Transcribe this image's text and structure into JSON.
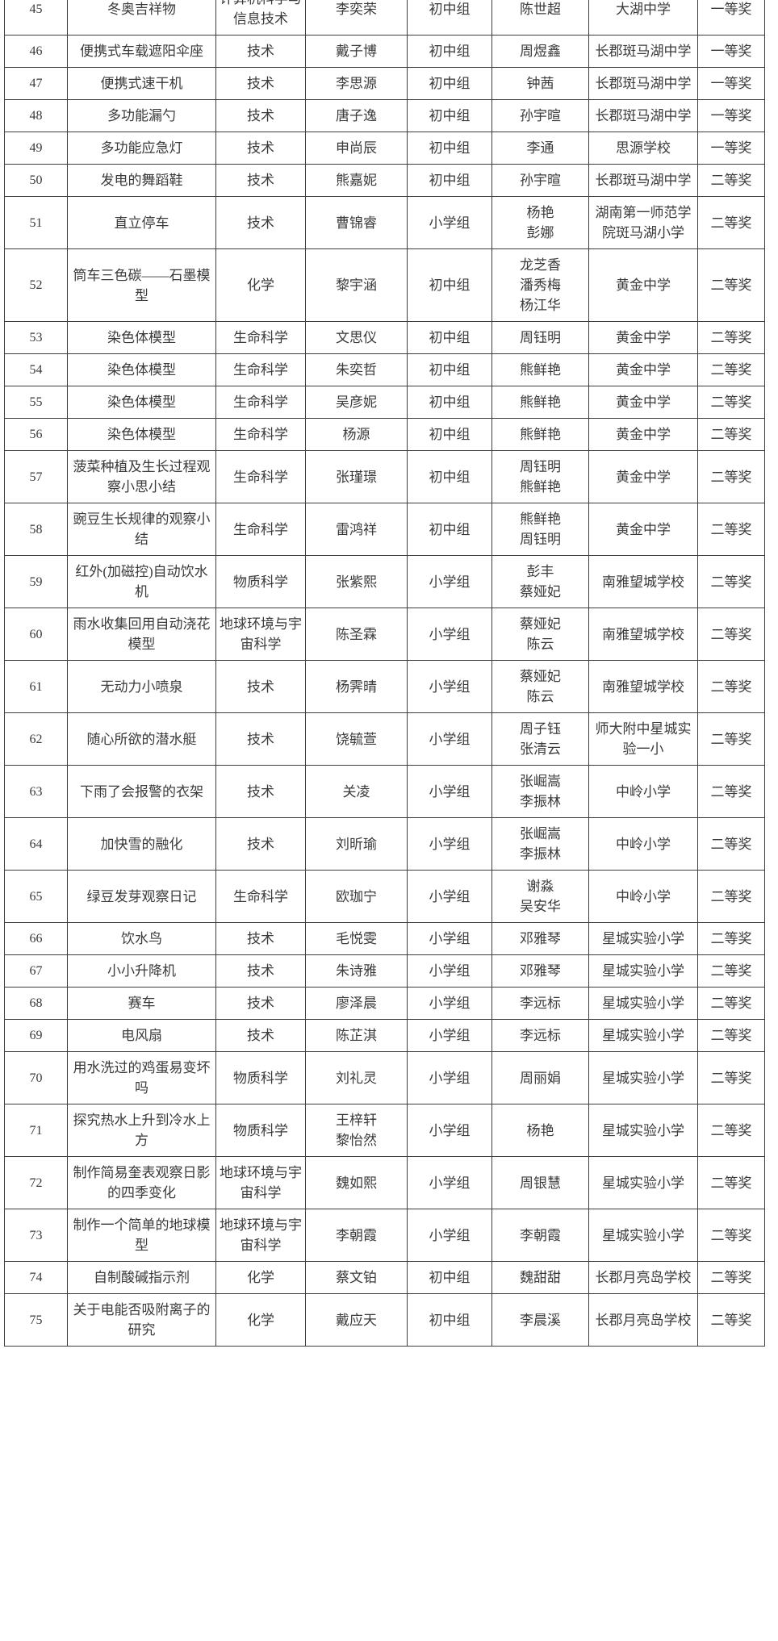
{
  "document": {
    "type": "scanned-award-list-table",
    "text_color": "#3a3a3a",
    "border_color": "#3d3d3d",
    "background_color": "#ffffff"
  },
  "table": {
    "rows": [
      {
        "no": "45",
        "project": "冬奥吉祥物",
        "category": "计算机科学与信息技术",
        "student": "李奕荣",
        "group": "初中组",
        "teacher": "陈世超",
        "school": "大湖中学",
        "award": "一等奖"
      },
      {
        "no": "46",
        "project": "便携式车载遮阳伞座",
        "category": "技术",
        "student": "戴子博",
        "group": "初中组",
        "teacher": "周煜鑫",
        "school": "长郡斑马湖中学",
        "award": "一等奖"
      },
      {
        "no": "47",
        "project": "便携式速干机",
        "category": "技术",
        "student": "李思源",
        "group": "初中组",
        "teacher": "钟茜",
        "school": "长郡斑马湖中学",
        "award": "一等奖"
      },
      {
        "no": "48",
        "project": "多功能漏勺",
        "category": "技术",
        "student": "唐子逸",
        "group": "初中组",
        "teacher": "孙宇暄",
        "school": "长郡斑马湖中学",
        "award": "一等奖"
      },
      {
        "no": "49",
        "project": "多功能应急灯",
        "category": "技术",
        "student": "申尚辰",
        "group": "初中组",
        "teacher": "李通",
        "school": "思源学校",
        "award": "一等奖"
      },
      {
        "no": "50",
        "project": "发电的舞蹈鞋",
        "category": "技术",
        "student": "熊嘉妮",
        "group": "初中组",
        "teacher": "孙宇暄",
        "school": "长郡斑马湖中学",
        "award": "二等奖"
      },
      {
        "no": "51",
        "project": "直立停车",
        "category": "技术",
        "student": "曹锦睿",
        "group": "小学组",
        "teacher": "杨艳\n彭娜",
        "school": "湖南第一师范学院斑马湖小学",
        "award": "二等奖"
      },
      {
        "no": "52",
        "project": "筒车三色碳——石墨模型",
        "category": "化学",
        "student": "黎宇涵",
        "group": "初中组",
        "teacher": "龙芝香\n潘秀梅\n杨江华",
        "school": "黄金中学",
        "award": "二等奖"
      },
      {
        "no": "53",
        "project": "染色体模型",
        "category": "生命科学",
        "student": "文思仪",
        "group": "初中组",
        "teacher": "周钰明",
        "school": "黄金中学",
        "award": "二等奖"
      },
      {
        "no": "54",
        "project": "染色体模型",
        "category": "生命科学",
        "student": "朱奕哲",
        "group": "初中组",
        "teacher": "熊鲜艳",
        "school": "黄金中学",
        "award": "二等奖"
      },
      {
        "no": "55",
        "project": "染色体模型",
        "category": "生命科学",
        "student": "吴彦妮",
        "group": "初中组",
        "teacher": "熊鲜艳",
        "school": "黄金中学",
        "award": "二等奖"
      },
      {
        "no": "56",
        "project": "染色体模型",
        "category": "生命科学",
        "student": "杨源",
        "group": "初中组",
        "teacher": "熊鲜艳",
        "school": "黄金中学",
        "award": "二等奖"
      },
      {
        "no": "57",
        "project": "菠菜种植及生长过程观察小思小结",
        "category": "生命科学",
        "student": "张瑾璟",
        "group": "初中组",
        "teacher": "周钰明\n熊鲜艳",
        "school": "黄金中学",
        "award": "二等奖"
      },
      {
        "no": "58",
        "project": "豌豆生长规律的观察小结",
        "category": "生命科学",
        "student": "雷鸿祥",
        "group": "初中组",
        "teacher": "熊鲜艳\n周钰明",
        "school": "黄金中学",
        "award": "二等奖"
      },
      {
        "no": "59",
        "project": "红外(加磁控)自动饮水机",
        "category": "物质科学",
        "student": "张紫熙",
        "group": "小学组",
        "teacher": "彭丰\n蔡娅妃",
        "school": "南雅望城学校",
        "award": "二等奖"
      },
      {
        "no": "60",
        "project": "雨水收集回用自动浇花模型",
        "category": "地球环境与宇宙科学",
        "student": "陈圣霖",
        "group": "小学组",
        "teacher": "蔡娅妃\n陈云",
        "school": "南雅望城学校",
        "award": "二等奖"
      },
      {
        "no": "61",
        "project": "无动力小喷泉",
        "category": "技术",
        "student": "杨霁晴",
        "group": "小学组",
        "teacher": "蔡娅妃\n陈云",
        "school": "南雅望城学校",
        "award": "二等奖"
      },
      {
        "no": "62",
        "project": "随心所欲的潜水艇",
        "category": "技术",
        "student": "饶毓萱",
        "group": "小学组",
        "teacher": "周子钰\n张清云",
        "school": "师大附中星城实验一小",
        "award": "二等奖"
      },
      {
        "no": "63",
        "project": "下雨了会报警的衣架",
        "category": "技术",
        "student": "关凌",
        "group": "小学组",
        "teacher": "张崛嵩\n李振林",
        "school": "中岭小学",
        "award": "二等奖"
      },
      {
        "no": "64",
        "project": "加快雪的融化",
        "category": "技术",
        "student": "刘昕瑜",
        "group": "小学组",
        "teacher": "张崛嵩\n李振林",
        "school": "中岭小学",
        "award": "二等奖"
      },
      {
        "no": "65",
        "project": "绿豆发芽观察日记",
        "category": "生命科学",
        "student": "欧珈宁",
        "group": "小学组",
        "teacher": "谢淼\n吴安华",
        "school": "中岭小学",
        "award": "二等奖"
      },
      {
        "no": "66",
        "project": "饮水鸟",
        "category": "技术",
        "student": "毛悦雯",
        "group": "小学组",
        "teacher": "邓雅琴",
        "school": "星城实验小学",
        "award": "二等奖"
      },
      {
        "no": "67",
        "project": "小小升降机",
        "category": "技术",
        "student": "朱诗雅",
        "group": "小学组",
        "teacher": "邓雅琴",
        "school": "星城实验小学",
        "award": "二等奖"
      },
      {
        "no": "68",
        "project": "赛车",
        "category": "技术",
        "student": "廖泽晨",
        "group": "小学组",
        "teacher": "李远标",
        "school": "星城实验小学",
        "award": "二等奖"
      },
      {
        "no": "69",
        "project": "电风扇",
        "category": "技术",
        "student": "陈芷淇",
        "group": "小学组",
        "teacher": "李远标",
        "school": "星城实验小学",
        "award": "二等奖"
      },
      {
        "no": "70",
        "project": "用水洗过的鸡蛋易变坏吗",
        "category": "物质科学",
        "student": "刘礼灵",
        "group": "小学组",
        "teacher": "周丽娟",
        "school": "星城实验小学",
        "award": "二等奖"
      },
      {
        "no": "71",
        "project": "探究热水上升到冷水上方",
        "category": "物质科学",
        "student": "王梓轩\n黎怡然",
        "group": "小学组",
        "teacher": "杨艳",
        "school": "星城实验小学",
        "award": "二等奖"
      },
      {
        "no": "72",
        "project": "制作简易奎表观察日影的四季变化",
        "category": "地球环境与宇宙科学",
        "student": "魏如熙",
        "group": "小学组",
        "teacher": "周银慧",
        "school": "星城实验小学",
        "award": "二等奖"
      },
      {
        "no": "73",
        "project": "制作一个简单的地球模型",
        "category": "地球环境与宇宙科学",
        "student": "李朝霞",
        "group": "小学组",
        "teacher": "李朝霞",
        "school": "星城实验小学",
        "award": "二等奖"
      },
      {
        "no": "74",
        "project": "自制酸碱指示剂",
        "category": "化学",
        "student": "蔡文铂",
        "group": "初中组",
        "teacher": "魏甜甜",
        "school": "长郡月亮岛学校",
        "award": "二等奖"
      },
      {
        "no": "75",
        "project": "关于电能否吸附离子的研究",
        "category": "化学",
        "student": "戴应天",
        "group": "初中组",
        "teacher": "李晨溪",
        "school": "长郡月亮岛学校",
        "award": "二等奖"
      }
    ]
  }
}
